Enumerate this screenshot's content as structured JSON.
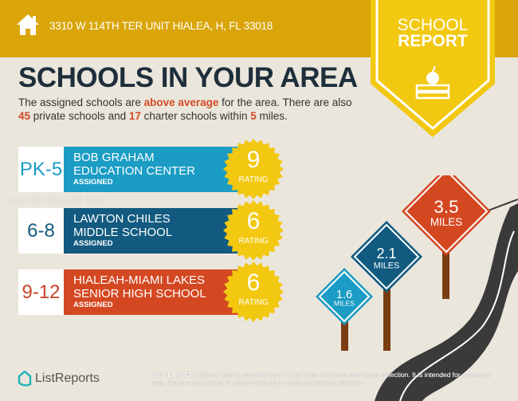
{
  "header": {
    "address": "3310 W 114TH TER UNIT HIALEA, H, FL 33018",
    "icon": "house-icon"
  },
  "badge": {
    "line1": "SCHOOL",
    "line2": "REPORT",
    "icon": "apple-books-icon"
  },
  "title": "SCHOOLS IN YOUR AREA",
  "summary": {
    "t1": "The assigned schools are ",
    "h1": "above average",
    "t2": " for the area. There are also ",
    "private": "45",
    "t3": " private schools and ",
    "charter": "17",
    "t4": " charter schools within ",
    "miles": "5",
    "t5": " miles."
  },
  "schools": [
    {
      "grade": "PK-5",
      "name": "BOB GRAHAM EDUCATION CENTER",
      "status": "ASSIGNED",
      "rating": "9",
      "rating_label": "RATING",
      "color": "#1b9cc4",
      "grade_color": "#1b9cc4"
    },
    {
      "grade": "6-8",
      "name": "LAWTON CHILES MIDDLE SCHOOL",
      "status": "ASSIGNED",
      "rating": "6",
      "rating_label": "RATING",
      "color": "#125a80",
      "grade_color": "#125a80"
    },
    {
      "grade": "9-12",
      "name": "HIALEAH-MIAMI LAKES SENIOR HIGH SCHOOL",
      "status": "ASSIGNED",
      "rating": "6",
      "rating_label": "RATING",
      "color": "#d44821",
      "grade_color": "#c9442a"
    }
  ],
  "watermark": "A11914101  SEFMLS© 2025",
  "signs": [
    {
      "value": "1.6",
      "unit": "MILES",
      "color": "#1b9cc4"
    },
    {
      "value": "2.1",
      "unit": "MILES",
      "color": "#125a80"
    },
    {
      "value": "3.5",
      "unit": "MILES",
      "color": "#d44821"
    }
  ],
  "footer": {
    "logo": "ListReports",
    "disclaimer_label": "DISCLAIMER:",
    "disclaimer": " School data is provided by ATTOM Data Solutions and agent selection. It is intended for reference only. Contact the school or district directly to verify enrollment eligibility."
  },
  "colors": {
    "header": "#d9a509",
    "badge": "#f2c811",
    "seal": "#f2c811"
  }
}
